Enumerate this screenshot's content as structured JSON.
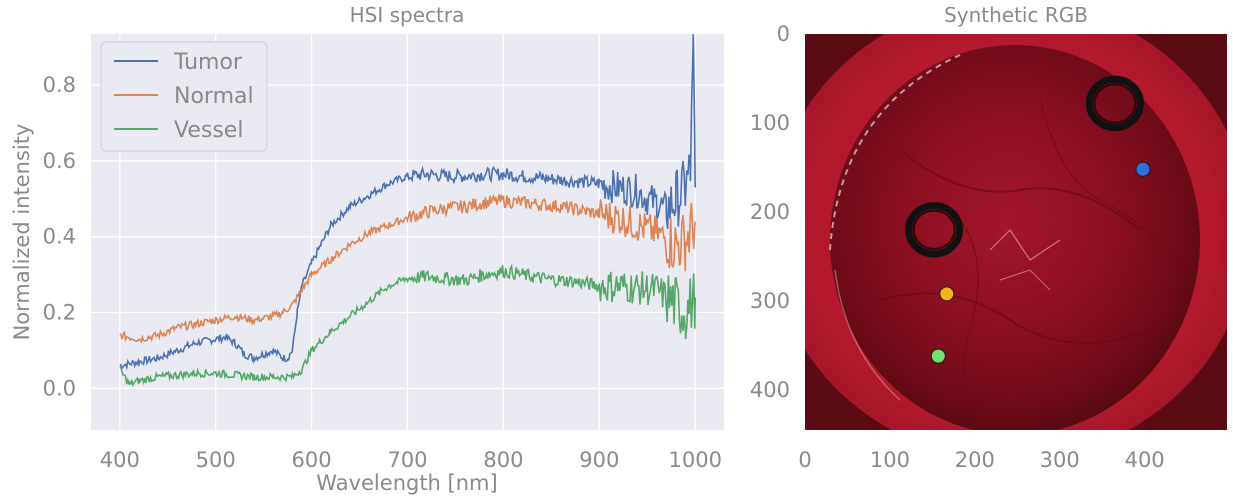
{
  "chart_data": [
    {
      "type": "line",
      "title": "HSI spectra",
      "xlabel": "Wavelength [nm]",
      "ylabel": "Normalized intensity",
      "xlim": [
        370,
        1030
      ],
      "ylim": [
        -0.11,
        0.935
      ],
      "x_ticks": [
        400,
        500,
        600,
        700,
        800,
        900,
        1000
      ],
      "y_ticks": [
        0.0,
        0.2,
        0.4,
        0.6,
        0.8
      ],
      "y_tick_labels": [
        "0.0",
        "0.2",
        "0.4",
        "0.6",
        "0.8"
      ],
      "grid": true,
      "legend_position": "top-left",
      "background": "#eaeaf2",
      "series": [
        {
          "name": "Tumor",
          "color": "#4c72b0",
          "x": [
            400,
            420,
            440,
            460,
            480,
            500,
            510,
            520,
            530,
            540,
            550,
            560,
            570,
            575,
            580,
            585,
            590,
            600,
            610,
            620,
            640,
            660,
            680,
            700,
            720,
            740,
            760,
            780,
            800,
            820,
            840,
            860,
            880,
            900,
            920,
            940,
            950,
            960,
            970,
            980,
            990,
            995,
            998,
            1000
          ],
          "values": [
            0.06,
            0.07,
            0.08,
            0.1,
            0.12,
            0.13,
            0.135,
            0.12,
            0.09,
            0.08,
            0.09,
            0.1,
            0.08,
            0.08,
            0.1,
            0.2,
            0.27,
            0.33,
            0.38,
            0.43,
            0.48,
            0.51,
            0.54,
            0.56,
            0.565,
            0.56,
            0.56,
            0.565,
            0.565,
            0.56,
            0.555,
            0.55,
            0.545,
            0.54,
            0.53,
            0.52,
            0.5,
            0.49,
            0.47,
            0.5,
            0.53,
            0.58,
            0.88,
            0.53
          ]
        },
        {
          "name": "Normal",
          "color": "#dd8452",
          "x": [
            400,
            420,
            440,
            460,
            480,
            500,
            520,
            540,
            560,
            570,
            580,
            590,
            600,
            620,
            640,
            660,
            680,
            700,
            720,
            740,
            760,
            780,
            800,
            820,
            840,
            860,
            880,
            900,
            920,
            940,
            960,
            980,
            990,
            1000
          ],
          "values": [
            0.14,
            0.13,
            0.14,
            0.16,
            0.17,
            0.18,
            0.19,
            0.18,
            0.19,
            0.2,
            0.22,
            0.26,
            0.3,
            0.34,
            0.38,
            0.41,
            0.43,
            0.45,
            0.465,
            0.475,
            0.48,
            0.49,
            0.495,
            0.49,
            0.485,
            0.48,
            0.47,
            0.46,
            0.45,
            0.43,
            0.41,
            0.38,
            0.39,
            0.44
          ]
        },
        {
          "name": "Vessel",
          "color": "#55a868",
          "x": [
            400,
            410,
            420,
            440,
            460,
            480,
            500,
            520,
            540,
            560,
            580,
            590,
            600,
            620,
            640,
            660,
            680,
            700,
            720,
            740,
            760,
            780,
            800,
            820,
            840,
            860,
            880,
            900,
            920,
            940,
            960,
            980,
            990,
            1000
          ],
          "values": [
            0.05,
            0.01,
            0.02,
            0.03,
            0.035,
            0.04,
            0.04,
            0.035,
            0.03,
            0.03,
            0.03,
            0.05,
            0.1,
            0.15,
            0.19,
            0.23,
            0.27,
            0.29,
            0.295,
            0.29,
            0.285,
            0.3,
            0.31,
            0.3,
            0.29,
            0.285,
            0.28,
            0.27,
            0.27,
            0.265,
            0.26,
            0.22,
            0.2,
            0.24
          ]
        }
      ]
    },
    {
      "type": "image",
      "title": "Synthetic RGB",
      "x_ticks": [
        0,
        100,
        200,
        300,
        400
      ],
      "y_ticks": [
        0,
        100,
        200,
        300,
        400
      ],
      "xlim": [
        0,
        497
      ],
      "ylim": [
        0,
        445
      ],
      "y_inverted": true,
      "rings": [
        {
          "x": 365,
          "y": 78,
          "r": 30
        },
        {
          "x": 152,
          "y": 220,
          "r": 30
        }
      ],
      "markers": [
        {
          "label": "Tumor",
          "x": 398,
          "y": 152,
          "color": "#2f6fe0"
        },
        {
          "label": "Normal",
          "x": 167,
          "y": 292,
          "color": "#f2b21a"
        },
        {
          "label": "Vessel",
          "x": 157,
          "y": 362,
          "color": "#6ee06e"
        }
      ]
    }
  ]
}
